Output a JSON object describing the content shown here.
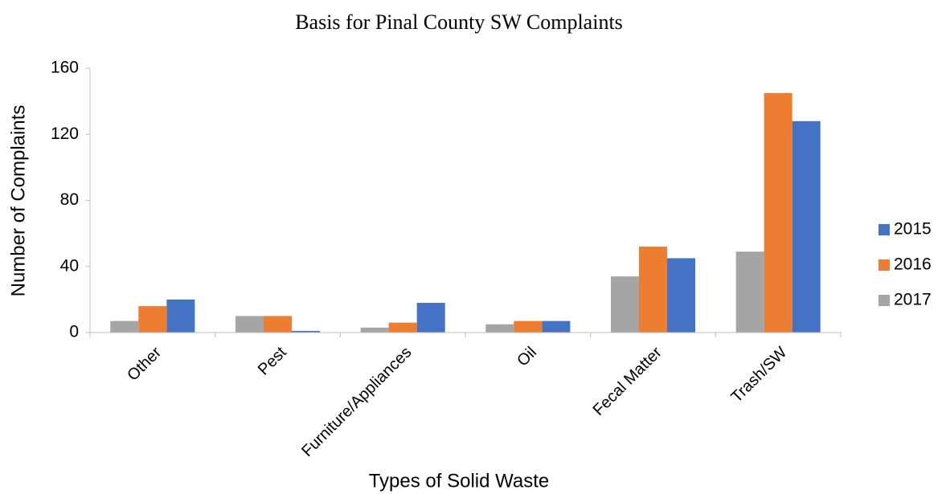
{
  "chart_data": {
    "type": "bar",
    "title": "Basis for Pinal County SW Complaints",
    "x_label": "Types of Solid Waste",
    "y_label": "Number of Complaints",
    "categories": [
      "Other",
      "Pest",
      "Furniture/Appliances",
      "Oil",
      "Fecal Matter",
      "Trash/SW"
    ],
    "series": [
      {
        "name": "2015",
        "color": "#4472c4",
        "values": [
          20,
          1,
          18,
          7,
          45,
          128
        ]
      },
      {
        "name": "2016",
        "color": "#ed7d31",
        "values": [
          16,
          10,
          6,
          7,
          52,
          145
        ]
      },
      {
        "name": "2017",
        "color": "#a5a5a5",
        "values": [
          7,
          10,
          3,
          5,
          34,
          49
        ]
      }
    ],
    "ylim": [
      0,
      160
    ],
    "yticks": [
      0,
      40,
      80,
      120,
      160
    ],
    "grid": false,
    "legend": "right"
  }
}
